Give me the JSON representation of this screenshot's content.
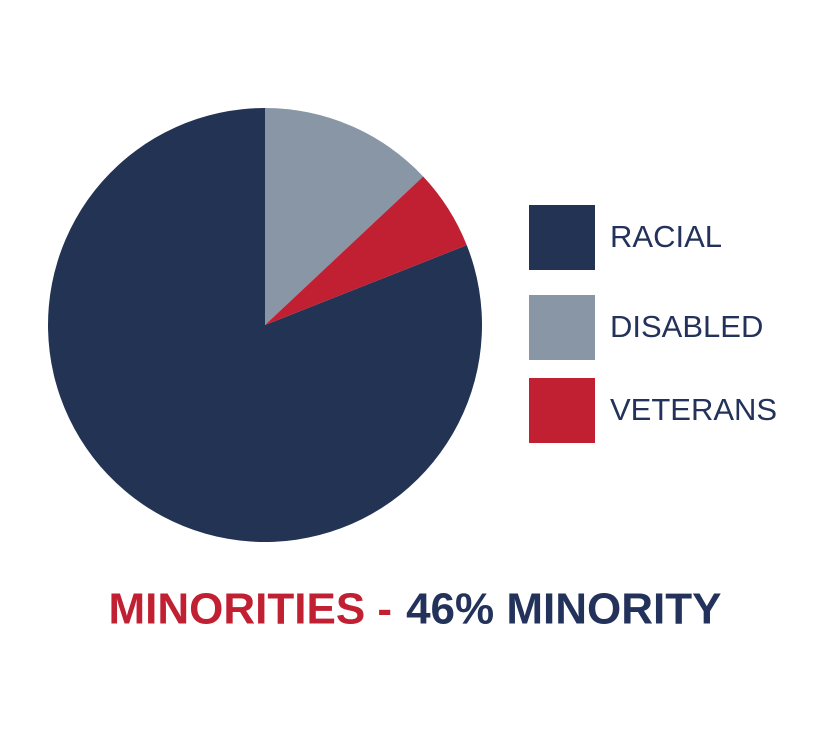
{
  "chart_data": {
    "type": "pie",
    "title_parts": [
      "MINORITIES -",
      "46% MINORITY"
    ],
    "title_colors": [
      "#c12033",
      "#22325a"
    ],
    "categories": [
      "RACIAL",
      "DISABLED",
      "VETERANS"
    ],
    "values": [
      81,
      13,
      6
    ],
    "colors": [
      "#233354",
      "#8896a5",
      "#c12033"
    ],
    "legend": "right"
  }
}
